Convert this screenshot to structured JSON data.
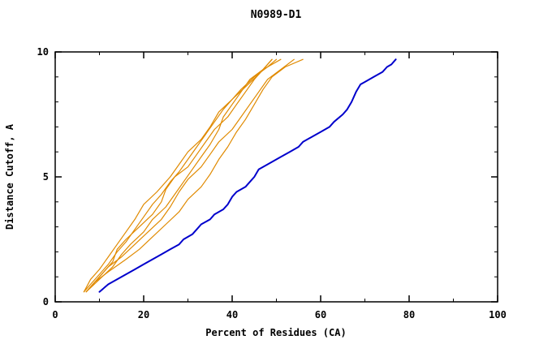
{
  "page": {
    "background": "#ffffff"
  },
  "chart_data": {
    "type": "line",
    "title": "N0989-D1",
    "xlabel": "Percent of Residues (CA)",
    "ylabel": "Distance Cutoff, A",
    "xlim": [
      0,
      100
    ],
    "ylim": [
      0,
      10
    ],
    "x_major_ticks": [
      0,
      20,
      40,
      60,
      80,
      100
    ],
    "x_minor_step": 10,
    "y_major_ticks": [
      0,
      5,
      10
    ],
    "y_minor_step": 1,
    "grid": false,
    "legend": "none",
    "axis_color": "#000000",
    "series": [
      {
        "name": "blue-curve",
        "color": "#0000cc",
        "stroke_width": 2,
        "points": [
          [
            10,
            0.4
          ],
          [
            12,
            0.7
          ],
          [
            14,
            0.9
          ],
          [
            16,
            1.1
          ],
          [
            18,
            1.3
          ],
          [
            20,
            1.5
          ],
          [
            22,
            1.7
          ],
          [
            24,
            1.9
          ],
          [
            26,
            2.1
          ],
          [
            28,
            2.3
          ],
          [
            29,
            2.5
          ],
          [
            31,
            2.7
          ],
          [
            32,
            2.9
          ],
          [
            33,
            3.1
          ],
          [
            35,
            3.3
          ],
          [
            36,
            3.5
          ],
          [
            38,
            3.7
          ],
          [
            39,
            3.9
          ],
          [
            40,
            4.2
          ],
          [
            41,
            4.4
          ],
          [
            43,
            4.6
          ],
          [
            44,
            4.8
          ],
          [
            45,
            5.0
          ],
          [
            46,
            5.3
          ],
          [
            48,
            5.5
          ],
          [
            49,
            5.6
          ],
          [
            51,
            5.8
          ],
          [
            53,
            6.0
          ],
          [
            55,
            6.2
          ],
          [
            56,
            6.4
          ],
          [
            58,
            6.6
          ],
          [
            60,
            6.8
          ],
          [
            62,
            7.0
          ],
          [
            63,
            7.2
          ],
          [
            65,
            7.5
          ],
          [
            66,
            7.7
          ],
          [
            67,
            8.0
          ],
          [
            68,
            8.4
          ],
          [
            69,
            8.7
          ],
          [
            70,
            8.8
          ],
          [
            72,
            9.0
          ],
          [
            74,
            9.2
          ],
          [
            75,
            9.4
          ],
          [
            76,
            9.5
          ],
          [
            77,
            9.7
          ]
        ]
      },
      {
        "name": "orange-curve-1",
        "color": "#e08a00",
        "stroke_width": 1.2,
        "points": [
          [
            6.5,
            0.4
          ],
          [
            8,
            0.7
          ],
          [
            10,
            1.1
          ],
          [
            12,
            1.5
          ],
          [
            14,
            2.0
          ],
          [
            16,
            2.4
          ],
          [
            18,
            2.9
          ],
          [
            20,
            3.4
          ],
          [
            22,
            3.9
          ],
          [
            24,
            4.3
          ],
          [
            26,
            4.8
          ],
          [
            28,
            5.2
          ],
          [
            30,
            5.7
          ],
          [
            32,
            6.2
          ],
          [
            34,
            6.7
          ],
          [
            36,
            7.2
          ],
          [
            38,
            7.7
          ],
          [
            40,
            8.1
          ],
          [
            42,
            8.5
          ],
          [
            45,
            9.0
          ],
          [
            48,
            9.4
          ],
          [
            50,
            9.7
          ]
        ]
      },
      {
        "name": "orange-curve-2",
        "color": "#e08a00",
        "stroke_width": 1.2,
        "points": [
          [
            7,
            0.4
          ],
          [
            9,
            0.8
          ],
          [
            11,
            1.2
          ],
          [
            13,
            1.6
          ],
          [
            14,
            2.1
          ],
          [
            16,
            2.5
          ],
          [
            19,
            3.0
          ],
          [
            22,
            3.5
          ],
          [
            24,
            4.0
          ],
          [
            25,
            4.5
          ],
          [
            27,
            5.0
          ],
          [
            30,
            5.4
          ],
          [
            32,
            5.9
          ],
          [
            34,
            6.4
          ],
          [
            36,
            6.9
          ],
          [
            39,
            7.4
          ],
          [
            41,
            7.9
          ],
          [
            43,
            8.4
          ],
          [
            45,
            8.9
          ],
          [
            47,
            9.3
          ],
          [
            49,
            9.7
          ]
        ]
      },
      {
        "name": "orange-curve-3",
        "color": "#e08a00",
        "stroke_width": 1.2,
        "points": [
          [
            7,
            0.4
          ],
          [
            10,
            0.9
          ],
          [
            13,
            1.4
          ],
          [
            15,
            1.9
          ],
          [
            17,
            2.3
          ],
          [
            20,
            2.8
          ],
          [
            22,
            3.3
          ],
          [
            25,
            3.8
          ],
          [
            27,
            4.3
          ],
          [
            29,
            4.8
          ],
          [
            31,
            5.3
          ],
          [
            33,
            5.8
          ],
          [
            35,
            6.3
          ],
          [
            37,
            6.9
          ],
          [
            38,
            7.4
          ],
          [
            40,
            7.9
          ],
          [
            42,
            8.4
          ],
          [
            44,
            8.9
          ],
          [
            47,
            9.3
          ],
          [
            51,
            9.7
          ]
        ]
      },
      {
        "name": "orange-curve-4",
        "color": "#e08a00",
        "stroke_width": 1.2,
        "points": [
          [
            7.5,
            0.5
          ],
          [
            10,
            1.0
          ],
          [
            12,
            1.4
          ],
          [
            15,
            1.8
          ],
          [
            18,
            2.3
          ],
          [
            21,
            2.8
          ],
          [
            24,
            3.3
          ],
          [
            26,
            3.8
          ],
          [
            28,
            4.4
          ],
          [
            30,
            4.9
          ],
          [
            33,
            5.4
          ],
          [
            35,
            5.9
          ],
          [
            37,
            6.4
          ],
          [
            40,
            6.9
          ],
          [
            42,
            7.4
          ],
          [
            44,
            7.9
          ],
          [
            46,
            8.4
          ],
          [
            48,
            8.9
          ],
          [
            51,
            9.3
          ],
          [
            54,
            9.7
          ]
        ]
      },
      {
        "name": "orange-curve-5",
        "color": "#e08a00",
        "stroke_width": 1.2,
        "points": [
          [
            7,
            0.4
          ],
          [
            9,
            0.8
          ],
          [
            12,
            1.2
          ],
          [
            16,
            1.7
          ],
          [
            19,
            2.1
          ],
          [
            22,
            2.6
          ],
          [
            25,
            3.1
          ],
          [
            28,
            3.6
          ],
          [
            30,
            4.1
          ],
          [
            33,
            4.6
          ],
          [
            35,
            5.1
          ],
          [
            37,
            5.7
          ],
          [
            39,
            6.2
          ],
          [
            41,
            6.8
          ],
          [
            43,
            7.3
          ],
          [
            45,
            7.9
          ],
          [
            47,
            8.5
          ],
          [
            49,
            9.0
          ],
          [
            52,
            9.4
          ],
          [
            56,
            9.7
          ]
        ]
      },
      {
        "name": "orange-curve-6",
        "color": "#e08a00",
        "stroke_width": 1.2,
        "points": [
          [
            6.5,
            0.4
          ],
          [
            8,
            0.9
          ],
          [
            10,
            1.3
          ],
          [
            12,
            1.8
          ],
          [
            14,
            2.3
          ],
          [
            16,
            2.8
          ],
          [
            18,
            3.3
          ],
          [
            20,
            3.9
          ],
          [
            23,
            4.4
          ],
          [
            26,
            5.0
          ],
          [
            28,
            5.5
          ],
          [
            30,
            6.0
          ],
          [
            33,
            6.5
          ],
          [
            35,
            7.0
          ],
          [
            37,
            7.6
          ],
          [
            40,
            8.1
          ],
          [
            43,
            8.6
          ],
          [
            46,
            9.1
          ],
          [
            48,
            9.5
          ],
          [
            49,
            9.7
          ]
        ]
      }
    ]
  }
}
